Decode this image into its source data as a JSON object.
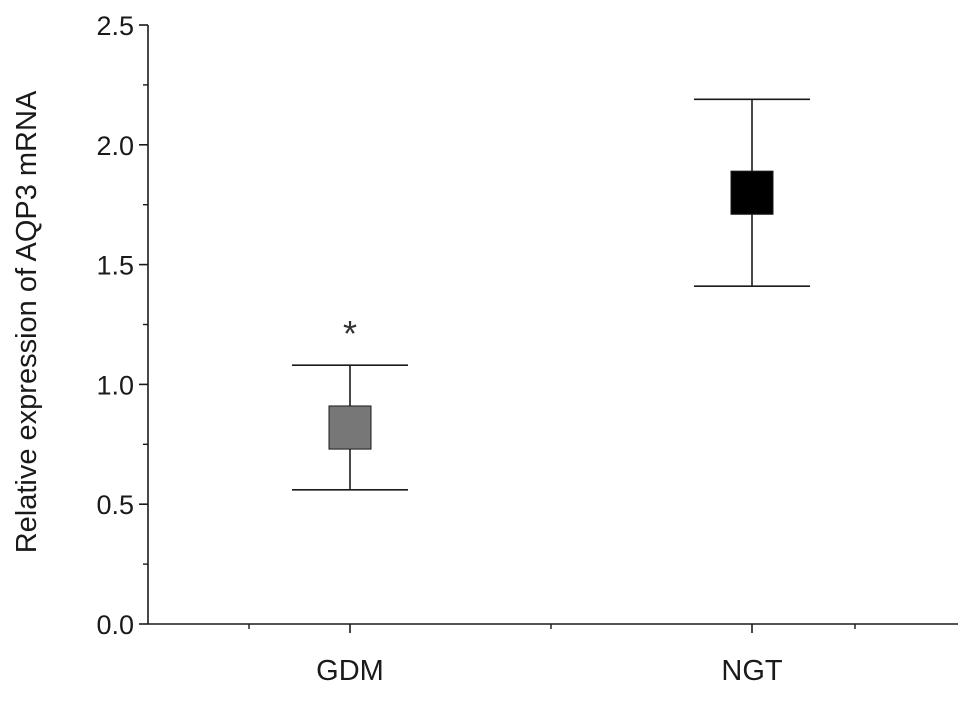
{
  "chart_data": {
    "type": "box",
    "categories": [
      "GDM",
      "NGT"
    ],
    "series": [
      {
        "values": [
          {
            "category": "GDM",
            "whisker_low": 0.56,
            "box_low": 0.73,
            "box_high": 0.91,
            "whisker_high": 1.08,
            "color": "#777777"
          },
          {
            "category": "NGT",
            "whisker_low": 1.41,
            "box_low": 1.71,
            "box_high": 1.89,
            "whisker_high": 2.19,
            "color": "#000000"
          }
        ]
      }
    ],
    "xlabel": "",
    "ylabel": "Relative expression of AQP3 mRNA",
    "ylim": [
      0.0,
      2.5
    ],
    "yticks": [
      0.0,
      0.5,
      1.0,
      1.5,
      2.0,
      2.5
    ],
    "ytick_labels": [
      "0.0",
      "0.5",
      "1.0",
      "1.5",
      "2.0",
      "2.5"
    ],
    "annotations": [
      {
        "category": "GDM",
        "text": "*",
        "y": 1.26
      }
    ],
    "grid": false,
    "legend": "none"
  }
}
